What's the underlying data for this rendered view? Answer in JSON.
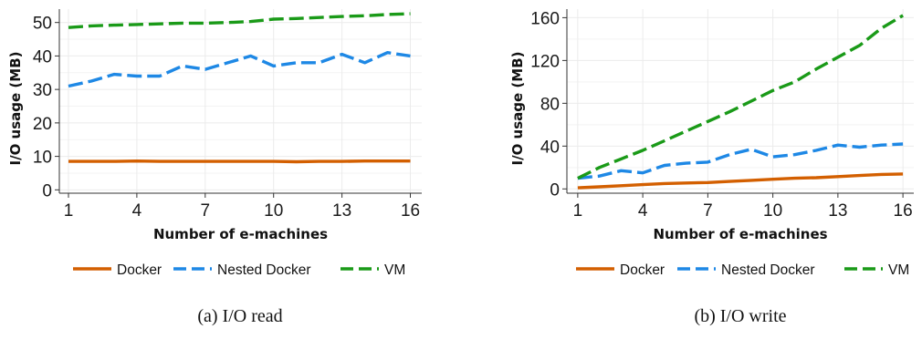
{
  "colors": {
    "docker": "#d35f00",
    "nested": "#1e88e5",
    "vm": "#1a9a18"
  },
  "legend": {
    "items": [
      "Docker",
      "Nested Docker",
      "VM"
    ],
    "placement": "bottom"
  },
  "chart_data": [
    {
      "type": "line",
      "caption": "(a) I/O read",
      "xlabel": "Number of e-machines",
      "ylabel": "I/O usage (MB)",
      "xticks": [
        1,
        4,
        7,
        10,
        13,
        16
      ],
      "yticks": [
        0,
        10,
        20,
        30,
        40,
        50
      ],
      "xlim": [
        0.6,
        16.5
      ],
      "ylim": [
        -1,
        54
      ],
      "grid": true,
      "x": [
        1,
        2,
        3,
        4,
        5,
        6,
        7,
        8,
        9,
        10,
        11,
        12,
        13,
        14,
        15,
        16
      ],
      "series": [
        {
          "name": "Docker",
          "style": "solid",
          "values": [
            8.5,
            8.5,
            8.5,
            8.6,
            8.5,
            8.5,
            8.5,
            8.5,
            8.5,
            8.5,
            8.4,
            8.5,
            8.5,
            8.6,
            8.6,
            8.6
          ]
        },
        {
          "name": "Nested Docker",
          "style": "dashed",
          "values": [
            31,
            32.5,
            34.5,
            34,
            34,
            37,
            36,
            38,
            40,
            37,
            38,
            38,
            40.5,
            38,
            41,
            40
          ]
        },
        {
          "name": "VM",
          "style": "dashed",
          "values": [
            48.5,
            49,
            49.2,
            49.4,
            49.6,
            49.8,
            49.8,
            50,
            50.3,
            51,
            51.2,
            51.5,
            51.8,
            52,
            52.4,
            52.6
          ]
        }
      ]
    },
    {
      "type": "line",
      "caption": "(b) I/O write",
      "xlabel": "Number of e-machines",
      "ylabel": "I/O usage (MB)",
      "xticks": [
        1,
        4,
        7,
        10,
        13,
        16
      ],
      "yticks": [
        0,
        40,
        80,
        120,
        160
      ],
      "xlim": [
        0.5,
        16.5
      ],
      "ylim": [
        -4,
        168
      ],
      "grid": true,
      "x": [
        1,
        2,
        3,
        4,
        5,
        6,
        7,
        8,
        9,
        10,
        11,
        12,
        13,
        14,
        15,
        16
      ],
      "series": [
        {
          "name": "Docker",
          "style": "solid",
          "values": [
            1,
            2,
            3,
            4,
            5,
            5.5,
            6,
            7,
            8,
            9,
            10,
            10.5,
            11.5,
            12.5,
            13.5,
            14
          ]
        },
        {
          "name": "Nested Docker",
          "style": "dashed",
          "values": [
            10,
            12,
            17,
            15,
            22,
            24,
            25,
            32,
            37,
            30,
            32,
            36,
            41,
            39,
            41,
            42
          ]
        },
        {
          "name": "VM",
          "style": "dashed",
          "values": [
            10,
            20,
            28,
            36,
            45,
            54,
            63,
            72,
            82,
            92,
            100,
            112,
            123,
            134,
            150,
            162
          ]
        }
      ]
    }
  ]
}
